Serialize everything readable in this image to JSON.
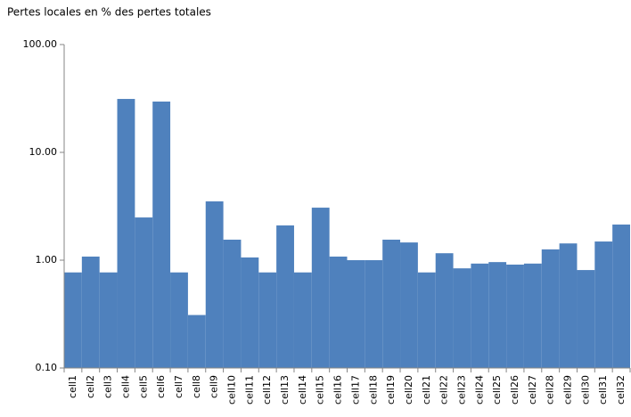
{
  "chart_data": {
    "type": "bar",
    "title": "Pertes locales en % des pertes totales",
    "categories": [
      "cell1",
      "cell2",
      "cell3",
      "cell4",
      "cell5",
      "cell6",
      "cell7",
      "cell8",
      "cell9",
      "cell10",
      "cell11",
      "cell12",
      "cell13",
      "cell14",
      "cell15",
      "cell16",
      "cell17",
      "cell18",
      "cell19",
      "cell20",
      "cell21",
      "cell22",
      "cell23",
      "cell24",
      "cell25",
      "cell26",
      "cell27",
      "cell28",
      "cell29",
      "cell30",
      "cell31",
      "cell32"
    ],
    "values": [
      0.77,
      1.08,
      0.77,
      31.3,
      2.49,
      29.6,
      0.77,
      0.31,
      3.51,
      1.55,
      1.06,
      0.77,
      2.1,
      0.77,
      3.07,
      1.08,
      1.0,
      1.0,
      1.55,
      1.46,
      0.77,
      1.16,
      0.84,
      0.93,
      0.96,
      0.91,
      0.93,
      1.26,
      1.43,
      0.81,
      1.49,
      2.14
    ],
    "color": "#4f81bd",
    "ylim": [
      0.1,
      100
    ],
    "log_scale": true,
    "yticks": [
      {
        "value": 0.1,
        "label": "0.10"
      },
      {
        "value": 1,
        "label": "1.00"
      },
      {
        "value": 10,
        "label": "10.00"
      },
      {
        "value": 100,
        "label": "100.00"
      }
    ],
    "grid": false
  }
}
